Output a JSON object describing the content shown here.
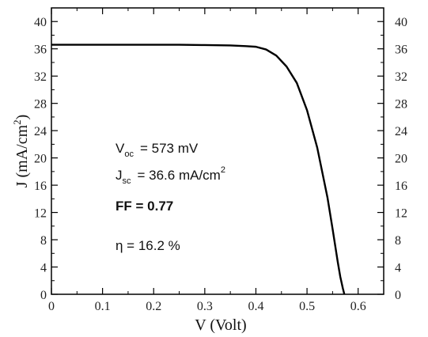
{
  "chart_data": {
    "type": "line",
    "xlabel": "V (Volt)",
    "ylabel_main": "J (mA/cm",
    "ylabel_sup": "2",
    "ylabel_tail": ")",
    "xlim": [
      0,
      0.65
    ],
    "ylim": [
      0,
      42
    ],
    "x_ticks": [
      0,
      0.1,
      0.2,
      0.3,
      0.4,
      0.5,
      0.6
    ],
    "x_tick_labels": [
      "0",
      "0.1",
      "0.2",
      "0.3",
      "0.4",
      "0.5",
      "0.6"
    ],
    "y_ticks": [
      0,
      4,
      8,
      12,
      16,
      20,
      24,
      28,
      32,
      36,
      40
    ],
    "y_tick_labels": [
      "0",
      "4",
      "8",
      "12",
      "16",
      "20",
      "24",
      "28",
      "32",
      "36",
      "40"
    ],
    "right_y_tick_labels": [
      "0",
      "4",
      "8",
      "12",
      "16",
      "20",
      "24",
      "28",
      "32",
      "36",
      "40"
    ],
    "grid": false,
    "series": [
      {
        "x": [
          0,
          0.05,
          0.1,
          0.15,
          0.2,
          0.25,
          0.3,
          0.35,
          0.38,
          0.4,
          0.42,
          0.44,
          0.46,
          0.48,
          0.5,
          0.52,
          0.54,
          0.55,
          0.56,
          0.565,
          0.57,
          0.573
        ],
        "y": [
          36.6,
          36.6,
          36.6,
          36.6,
          36.6,
          36.6,
          36.55,
          36.5,
          36.4,
          36.3,
          35.9,
          35.0,
          33.4,
          31.0,
          27.0,
          21.5,
          14.2,
          9.6,
          4.8,
          2.6,
          0.9,
          0
        ]
      }
    ],
    "annotations": {
      "voc_main": "V",
      "voc_sub": "oc",
      "voc_text": "=  573 mV",
      "jsc_main": "J",
      "jsc_sub": "sc",
      "jsc_text": "=  36.6 mA/cm",
      "jsc_sup": "2",
      "ff_text": "FF  =  0.77",
      "eta_text": "η  =  16.2 %"
    }
  }
}
